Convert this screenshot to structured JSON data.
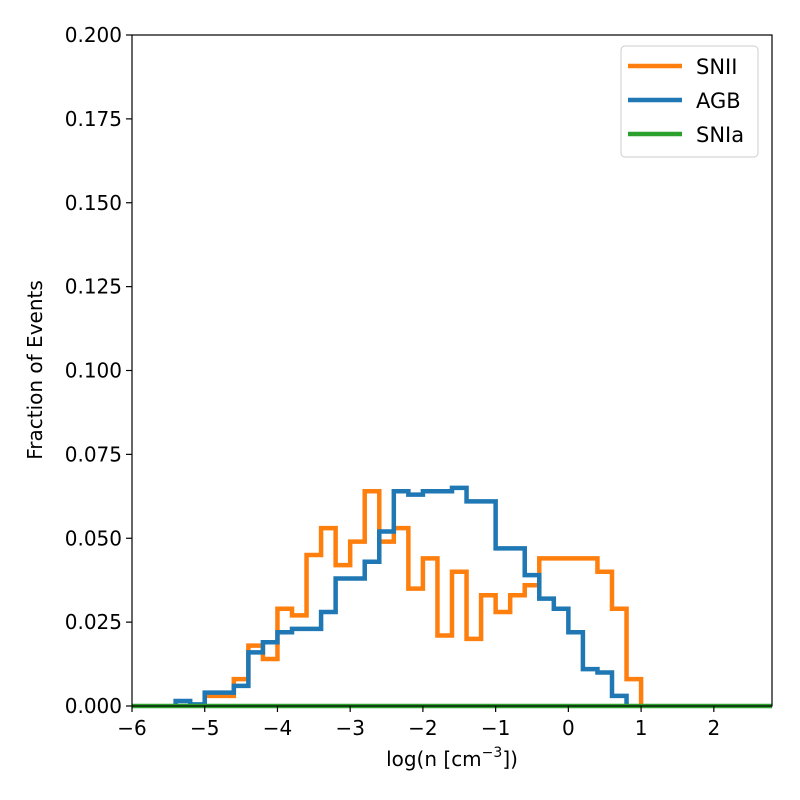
{
  "chart_data": {
    "type": "histogram-step",
    "title": "",
    "xlabel": "log(n [cm",
    "xlabel_sup": "−3",
    "xlabel_end": "])",
    "ylabel": "Fraction of Events",
    "xlim": [
      -6,
      2.8
    ],
    "ylim": [
      0,
      0.2
    ],
    "x_ticks": [
      -6,
      -5,
      -4,
      -3,
      -2,
      -1,
      0,
      1,
      2
    ],
    "x_tick_labels": [
      "−6",
      "−5",
      "−4",
      "−3",
      "−2",
      "−1",
      "0",
      "1",
      "2"
    ],
    "y_ticks": [
      0,
      0.025,
      0.05,
      0.075,
      0.1,
      0.125,
      0.15,
      0.175,
      0.2
    ],
    "y_tick_labels": [
      "0.000",
      "0.025",
      "0.050",
      "0.075",
      "0.100",
      "0.125",
      "0.150",
      "0.175",
      "0.200"
    ],
    "grid": false,
    "legend_position": "top-right",
    "series": [
      {
        "name": "SNII",
        "color": "#ff7f0e",
        "edges": [
          -5.0,
          -4.8,
          -4.6,
          -4.4,
          -4.2,
          -4.0,
          -3.8,
          -3.6,
          -3.4,
          -3.2,
          -3.0,
          -2.8,
          -2.6,
          -2.4,
          -2.2,
          -2.0,
          -1.8,
          -1.6,
          -1.4,
          -1.2,
          -1.0,
          -0.8,
          -0.6,
          -0.4,
          -0.2,
          0.0,
          0.2,
          0.4,
          0.6,
          0.8,
          1.0
        ],
        "values": [
          0.003,
          0.003,
          0.008,
          0.018,
          0.014,
          0.029,
          0.027,
          0.045,
          0.053,
          0.042,
          0.049,
          0.064,
          0.049,
          0.053,
          0.035,
          0.044,
          0.021,
          0.04,
          0.02,
          0.033,
          0.028,
          0.033,
          0.036,
          0.044,
          0.044,
          0.044,
          0.044,
          0.04,
          0.029,
          0.008
        ]
      },
      {
        "name": "AGB",
        "color": "#1f77b4",
        "edges": [
          -5.4,
          -5.2,
          -5.0,
          -4.8,
          -4.6,
          -4.4,
          -4.2,
          -4.0,
          -3.8,
          -3.6,
          -3.4,
          -3.2,
          -3.0,
          -2.8,
          -2.6,
          -2.4,
          -2.2,
          -2.0,
          -1.8,
          -1.6,
          -1.4,
          -1.2,
          -1.0,
          -0.8,
          -0.6,
          -0.4,
          -0.2,
          0.0,
          0.2,
          0.4,
          0.6,
          0.8
        ],
        "values": [
          0.0015,
          0.0005,
          0.004,
          0.004,
          0.006,
          0.016,
          0.019,
          0.022,
          0.023,
          0.023,
          0.028,
          0.038,
          0.038,
          0.043,
          0.052,
          0.064,
          0.063,
          0.064,
          0.064,
          0.065,
          0.061,
          0.061,
          0.047,
          0.047,
          0.039,
          0.032,
          0.029,
          0.022,
          0.011,
          0.01,
          0.003
        ]
      },
      {
        "name": "SNIa",
        "color": "#2ca02c",
        "edges": [
          -6,
          2.8
        ],
        "values": [
          0
        ]
      }
    ]
  }
}
